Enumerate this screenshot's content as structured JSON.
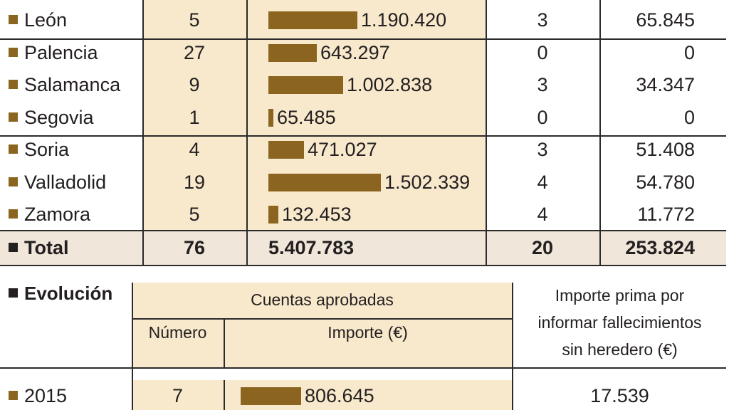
{
  "chart_data": [
    {
      "type": "table",
      "rows": [
        {
          "province": "León",
          "n1": "5",
          "importe": "1.190.420",
          "importe_value": 1190420,
          "n2": "3",
          "prima": "65.845"
        },
        {
          "province": "Palencia",
          "n1": "27",
          "importe": "643.297",
          "importe_value": 643297,
          "n2": "0",
          "prima": "0"
        },
        {
          "province": "Salamanca",
          "n1": "9",
          "importe": "1.002.838",
          "importe_value": 1002838,
          "n2": "3",
          "prima": "34.347"
        },
        {
          "province": "Segovia",
          "n1": "1",
          "importe": "65.485",
          "importe_value": 65485,
          "n2": "0",
          "prima": "0"
        },
        {
          "province": "Soria",
          "n1": "4",
          "importe": "471.027",
          "importe_value": 471027,
          "n2": "3",
          "prima": "51.408"
        },
        {
          "province": "Valladolid",
          "n1": "19",
          "importe": "1.502.339",
          "importe_value": 1502339,
          "n2": "4",
          "prima": "54.780"
        },
        {
          "province": "Zamora",
          "n1": "5",
          "importe": "132.453",
          "importe_value": 132453,
          "n2": "4",
          "prima": "11.772"
        }
      ],
      "total": {
        "label": "Total",
        "n1": "76",
        "importe": "5.407.783",
        "n2": "20",
        "prima": "253.824"
      }
    },
    {
      "type": "table",
      "title": "Evolución",
      "group_header": "Cuentas aprobadas",
      "col_numero": "Número",
      "col_importe": "Importe (€)",
      "col_prima": [
        "Importe prima por",
        "informar fallecimientos",
        "sin heredero (€)"
      ],
      "rows": [
        {
          "year": "2015",
          "numero": "7",
          "importe": "806.645",
          "importe_value": 806645,
          "prima": "17.539"
        }
      ]
    }
  ],
  "colors": {
    "bar": "#8b6520",
    "highlight": "#f8e9cc",
    "total_row": "#f0e7da",
    "rule": "#2b2b2b"
  }
}
